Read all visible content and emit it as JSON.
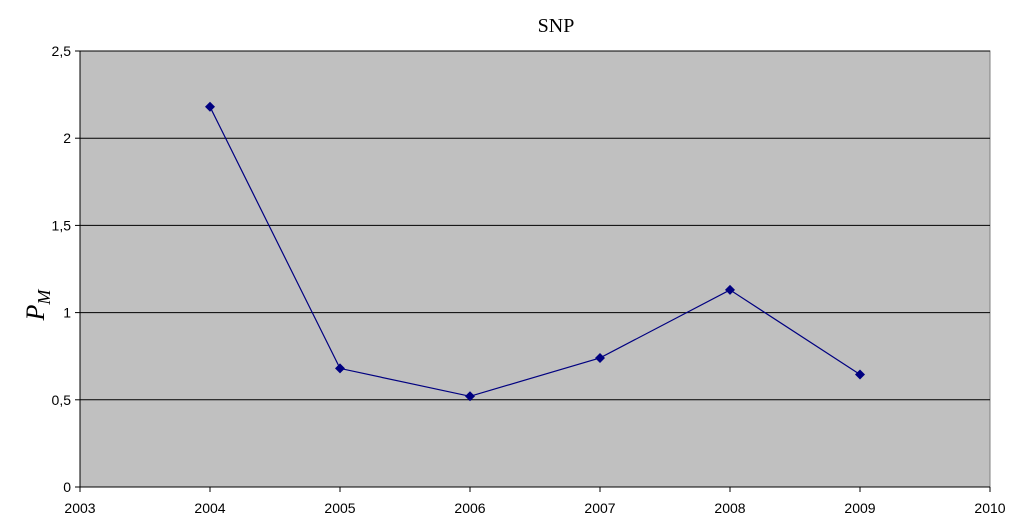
{
  "chart_data": {
    "type": "line",
    "title": "SNP",
    "xlabel": "",
    "ylabel": {
      "main": "P",
      "subscript": "M"
    },
    "xlim": [
      2003,
      2010
    ],
    "ylim": [
      0,
      2.5
    ],
    "x_ticks": [
      2003,
      2004,
      2005,
      2006,
      2007,
      2008,
      2009,
      2010
    ],
    "x_tick_labels": [
      "2003",
      "2004",
      "2005",
      "2006",
      "2007",
      "2008",
      "2009",
      "2010"
    ],
    "y_ticks": [
      0,
      0.5,
      1,
      1.5,
      2,
      2.5
    ],
    "y_tick_labels": [
      "0",
      "0,5",
      "1",
      "1,5",
      "2",
      "2,5"
    ],
    "grid": true,
    "legend": "none",
    "colors": {
      "plot_background": "#c0c0c0",
      "series": "#000080",
      "gridline": "#000000"
    },
    "series": [
      {
        "x": [
          2004,
          2005,
          2006,
          2007,
          2008,
          2009
        ],
        "values": [
          2.18,
          0.68,
          0.52,
          0.74,
          1.13,
          0.645
        ]
      }
    ]
  }
}
